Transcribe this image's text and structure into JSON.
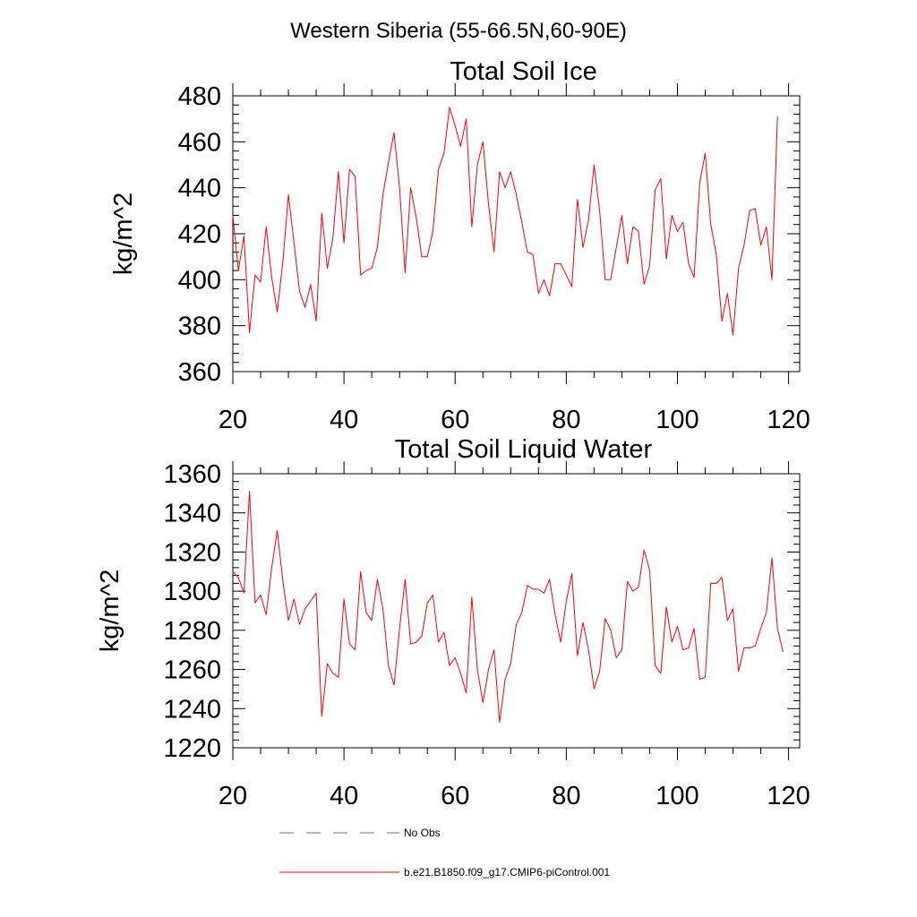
{
  "figure_title": "Western Siberia (55-66.5N,60-90E)",
  "colors": {
    "series": "#ff0000",
    "obs": "#6f6f9a",
    "axis": "#000000"
  },
  "chart_data": [
    {
      "type": "line",
      "title": "Total Soil Ice",
      "xlabel": "",
      "ylabel": "kg/m^2",
      "xlim": [
        20,
        122
      ],
      "ylim": [
        360,
        480
      ],
      "xticks": [
        20,
        40,
        60,
        80,
        100,
        120
      ],
      "yticks": [
        360,
        380,
        400,
        420,
        440,
        460,
        480
      ],
      "x_start": 20,
      "series": [
        {
          "name": "b.e21.B1850.f09_g17.CMIP6-piControl.001",
          "values": [
            428,
            404,
            419,
            377,
            402,
            399,
            423,
            401,
            386,
            408,
            437,
            416,
            395,
            388,
            398,
            382,
            429,
            405,
            418,
            447,
            416,
            448,
            445,
            402,
            404,
            405,
            414,
            437,
            451,
            464,
            440,
            403,
            440,
            427,
            410,
            410,
            421,
            448,
            455,
            475,
            467,
            458,
            470,
            423,
            450,
            460,
            433,
            412,
            447,
            440,
            447,
            437,
            425,
            412,
            411,
            394,
            400,
            393,
            407,
            407,
            402,
            397,
            435,
            414,
            426,
            450,
            430,
            400,
            400,
            414,
            428,
            407,
            423,
            421,
            398,
            406,
            439,
            444,
            409,
            428,
            421,
            425,
            407,
            401,
            442,
            455,
            424,
            411,
            382,
            394,
            376,
            405,
            415,
            430,
            431,
            415,
            423,
            400,
            471
          ]
        }
      ]
    },
    {
      "type": "line",
      "title": "Total Soil Liquid Water",
      "xlabel": "",
      "ylabel": "kg/m^2",
      "xlim": [
        20,
        122
      ],
      "ylim": [
        1220,
        1360
      ],
      "xticks": [
        20,
        40,
        60,
        80,
        100,
        120
      ],
      "yticks": [
        1220,
        1240,
        1260,
        1280,
        1300,
        1320,
        1340,
        1360
      ],
      "x_start": 20,
      "series": [
        {
          "name": "b.e21.B1850.f09_g17.CMIP6-piControl.001",
          "values": [
            1310,
            1307,
            1299,
            1351,
            1294,
            1298,
            1288,
            1312,
            1331,
            1305,
            1285,
            1296,
            1283,
            1291,
            1295,
            1299,
            1236,
            1263,
            1258,
            1256,
            1296,
            1273,
            1270,
            1310,
            1289,
            1285,
            1306,
            1291,
            1262,
            1252,
            1281,
            1306,
            1273,
            1274,
            1277,
            1294,
            1298,
            1274,
            1279,
            1262,
            1266,
            1258,
            1248,
            1297,
            1260,
            1243,
            1260,
            1270,
            1233,
            1255,
            1263,
            1283,
            1289,
            1303,
            1301,
            1301,
            1299,
            1306,
            1288,
            1274,
            1295,
            1309,
            1267,
            1284,
            1270,
            1250,
            1259,
            1286,
            1280,
            1266,
            1270,
            1305,
            1300,
            1302,
            1321,
            1311,
            1262,
            1258,
            1292,
            1274,
            1282,
            1270,
            1271,
            1281,
            1255,
            1256,
            1304,
            1304,
            1307,
            1285,
            1291,
            1259,
            1271,
            1271,
            1272,
            1281,
            1289,
            1317,
            1281,
            1269
          ]
        }
      ]
    }
  ],
  "legend": [
    {
      "label": "No Obs",
      "style": "dashed",
      "color": "#6f6f9a"
    },
    {
      "label": "b.e21.B1850.f09_g17.CMIP6-piControl.001",
      "style": "solid",
      "color": "#ff0000"
    }
  ]
}
